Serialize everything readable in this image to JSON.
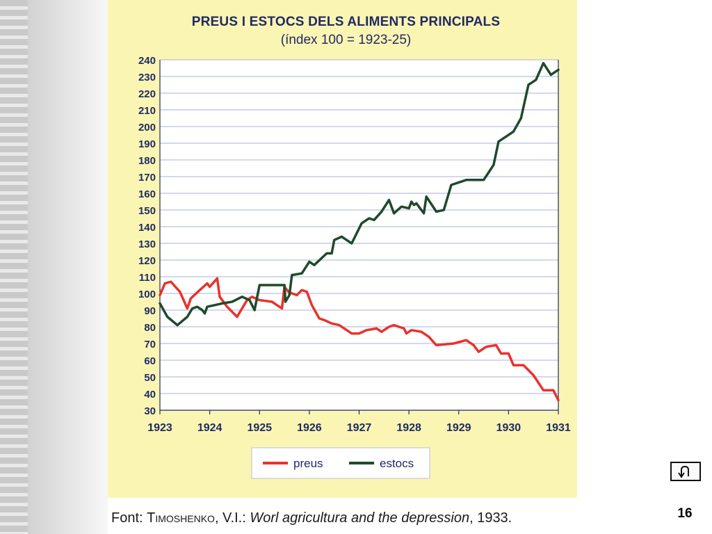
{
  "slide": {
    "page_number": "16",
    "return_icon": "u-turn-arrow-icon"
  },
  "chart": {
    "title": "PREUS I ESTOCS DELS ALIMENTS PRINCIPALS",
    "subtitle": "(índex 100 = 1923-25)",
    "legend": [
      "preus",
      "estocs"
    ]
  },
  "source": {
    "prefix": "Font: ",
    "author": "Timoshenko",
    "author_rest": ", V.I.: ",
    "book": "Worl agricultura and the depression",
    "year": ", 1933."
  },
  "chart_data": {
    "type": "line",
    "title": "PREUS I ESTOCS DELS ALIMENTS PRINCIPALS",
    "subtitle": "(índex 100 = 1923-25)",
    "xlabel": "",
    "ylabel": "",
    "xlim": [
      1923,
      1931
    ],
    "ylim": [
      30,
      240
    ],
    "x_ticks": [
      1923,
      1924,
      1925,
      1926,
      1927,
      1928,
      1929,
      1930,
      1931
    ],
    "y_ticks": [
      30,
      40,
      50,
      60,
      70,
      80,
      90,
      100,
      110,
      120,
      130,
      140,
      150,
      160,
      170,
      180,
      190,
      200,
      210,
      220,
      230,
      240
    ],
    "grid": "horizontal",
    "legend_position": "bottom",
    "colors": {
      "preus": "#e8322b",
      "estocs": "#1f4a2a",
      "grid": "#a9b0d8",
      "background": "#fbf5b3"
    },
    "series": [
      {
        "name": "preus",
        "points": [
          [
            1923.0,
            99
          ],
          [
            1923.1,
            106
          ],
          [
            1923.22,
            107
          ],
          [
            1923.4,
            101
          ],
          [
            1923.55,
            91
          ],
          [
            1923.62,
            97
          ],
          [
            1923.8,
            102
          ],
          [
            1923.95,
            106
          ],
          [
            1924.0,
            104
          ],
          [
            1924.15,
            109
          ],
          [
            1924.2,
            98
          ],
          [
            1924.35,
            92
          ],
          [
            1924.55,
            86
          ],
          [
            1924.75,
            96
          ],
          [
            1924.85,
            98
          ],
          [
            1925.0,
            96
          ],
          [
            1925.25,
            95
          ],
          [
            1925.35,
            93
          ],
          [
            1925.45,
            91
          ],
          [
            1925.5,
            104
          ],
          [
            1925.58,
            101
          ],
          [
            1925.65,
            100
          ],
          [
            1925.75,
            99
          ],
          [
            1925.85,
            102
          ],
          [
            1925.95,
            101
          ],
          [
            1926.05,
            93
          ],
          [
            1926.2,
            85
          ],
          [
            1926.3,
            84
          ],
          [
            1926.45,
            82
          ],
          [
            1926.6,
            81
          ],
          [
            1926.85,
            76
          ],
          [
            1927.0,
            76
          ],
          [
            1927.15,
            78
          ],
          [
            1927.35,
            79
          ],
          [
            1927.45,
            77
          ],
          [
            1927.6,
            80
          ],
          [
            1927.7,
            81
          ],
          [
            1927.9,
            79
          ],
          [
            1927.95,
            76
          ],
          [
            1928.05,
            78
          ],
          [
            1928.25,
            77
          ],
          [
            1928.4,
            74
          ],
          [
            1928.55,
            69
          ],
          [
            1928.9,
            70
          ],
          [
            1929.15,
            72
          ],
          [
            1929.3,
            69
          ],
          [
            1929.4,
            65
          ],
          [
            1929.55,
            68
          ],
          [
            1929.75,
            69
          ],
          [
            1929.85,
            64
          ],
          [
            1930.0,
            64
          ],
          [
            1930.1,
            57
          ],
          [
            1930.3,
            57
          ],
          [
            1930.5,
            51
          ],
          [
            1930.7,
            42
          ],
          [
            1930.9,
            42
          ],
          [
            1931.0,
            36
          ]
        ]
      },
      {
        "name": "estocs",
        "points": [
          [
            1923.0,
            94
          ],
          [
            1923.15,
            86
          ],
          [
            1923.35,
            81
          ],
          [
            1923.55,
            86
          ],
          [
            1923.65,
            91
          ],
          [
            1923.75,
            92
          ],
          [
            1923.85,
            90
          ],
          [
            1923.9,
            88
          ],
          [
            1923.95,
            92
          ],
          [
            1924.25,
            94
          ],
          [
            1924.45,
            95
          ],
          [
            1924.65,
            98
          ],
          [
            1924.8,
            96
          ],
          [
            1924.9,
            90
          ],
          [
            1925.0,
            105
          ],
          [
            1925.25,
            105
          ],
          [
            1925.5,
            105
          ],
          [
            1925.52,
            95
          ],
          [
            1925.6,
            99
          ],
          [
            1925.65,
            111
          ],
          [
            1925.85,
            112
          ],
          [
            1926.0,
            119
          ],
          [
            1926.1,
            117
          ],
          [
            1926.35,
            124
          ],
          [
            1926.45,
            124
          ],
          [
            1926.5,
            132
          ],
          [
            1926.65,
            134
          ],
          [
            1926.85,
            130
          ],
          [
            1927.05,
            142
          ],
          [
            1927.2,
            145
          ],
          [
            1927.3,
            144
          ],
          [
            1927.45,
            149
          ],
          [
            1927.6,
            156
          ],
          [
            1927.7,
            148
          ],
          [
            1927.85,
            152
          ],
          [
            1928.0,
            151
          ],
          [
            1928.05,
            155
          ],
          [
            1928.1,
            153
          ],
          [
            1928.15,
            154
          ],
          [
            1928.25,
            150
          ],
          [
            1928.3,
            148
          ],
          [
            1928.35,
            158
          ],
          [
            1928.55,
            149
          ],
          [
            1928.7,
            150
          ],
          [
            1928.85,
            165
          ],
          [
            1929.15,
            168
          ],
          [
            1929.5,
            168
          ],
          [
            1929.7,
            177
          ],
          [
            1929.8,
            191
          ],
          [
            1929.95,
            194
          ],
          [
            1930.1,
            197
          ],
          [
            1930.25,
            205
          ],
          [
            1930.4,
            225
          ],
          [
            1930.55,
            228
          ],
          [
            1930.7,
            238
          ],
          [
            1930.85,
            231
          ],
          [
            1931.0,
            234
          ]
        ]
      }
    ]
  }
}
